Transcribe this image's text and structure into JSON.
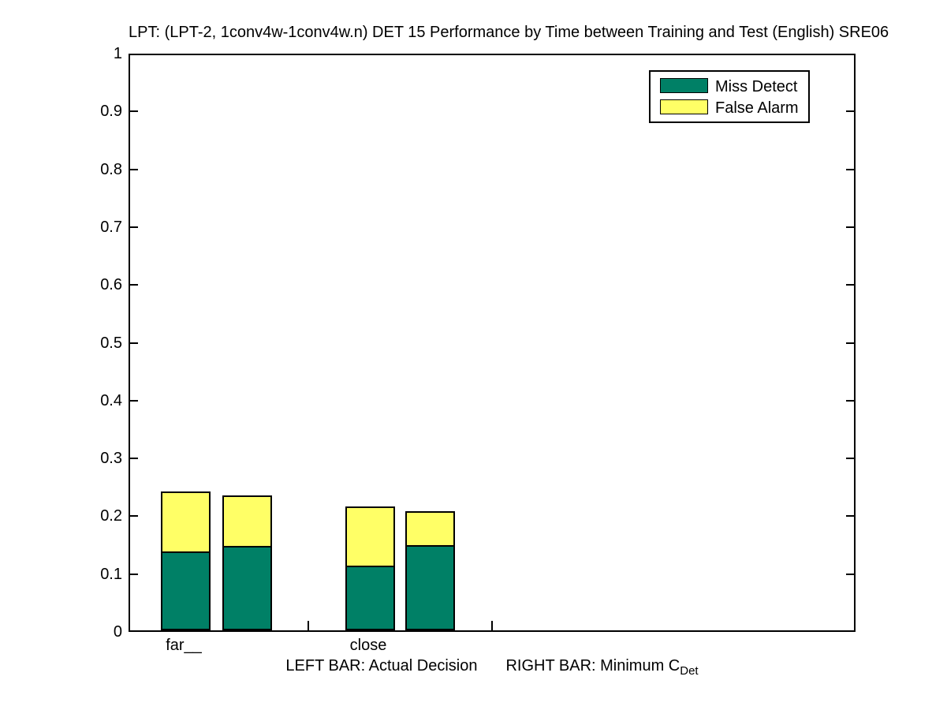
{
  "footnote": {
    "left": "LEFT BAR: Actual Decision",
    "right": "RIGHT BAR: Minimum C",
    "right_subscript": "Det"
  },
  "chart_data": {
    "type": "bar",
    "stacked": true,
    "title": "LPT: (LPT-2, 1conv4w-1conv4w.n) DET 15 Performance by Time between Training and Test (English) SRE06",
    "ylim": [
      0,
      1
    ],
    "grid": false,
    "legend_position": "top-right",
    "series": [
      {
        "name": "Miss Detect",
        "color": "#008066"
      },
      {
        "name": "False Alarm",
        "color": "#FFFF66"
      }
    ],
    "yticks": [
      {
        "value": 0,
        "label": "0"
      },
      {
        "value": 0.1,
        "label": "0.1"
      },
      {
        "value": 0.2,
        "label": "0.2"
      },
      {
        "value": 0.3,
        "label": "0.3"
      },
      {
        "value": 0.4,
        "label": "0.4"
      },
      {
        "value": 0.5,
        "label": "0.5"
      },
      {
        "value": 0.6,
        "label": "0.6"
      },
      {
        "value": 0.7,
        "label": "0.7"
      },
      {
        "value": 0.8,
        "label": "0.8"
      },
      {
        "value": 0.9,
        "label": "0.9"
      },
      {
        "value": 1,
        "label": "1"
      }
    ],
    "groups": [
      {
        "category": "far__",
        "bars": [
          {
            "bar": "Actual Decision",
            "miss_detect": 0.137,
            "false_alarm": 0.104,
            "total": 0.241
          },
          {
            "bar": "Minimum CDet",
            "miss_detect": 0.146,
            "false_alarm": 0.087,
            "total": 0.233
          }
        ]
      },
      {
        "category": "close",
        "bars": [
          {
            "bar": "Actual Decision",
            "miss_detect": 0.112,
            "false_alarm": 0.103,
            "total": 0.215
          },
          {
            "bar": "Minimum CDet",
            "miss_detect": 0.147,
            "false_alarm": 0.059,
            "total": 0.206
          }
        ]
      }
    ]
  }
}
